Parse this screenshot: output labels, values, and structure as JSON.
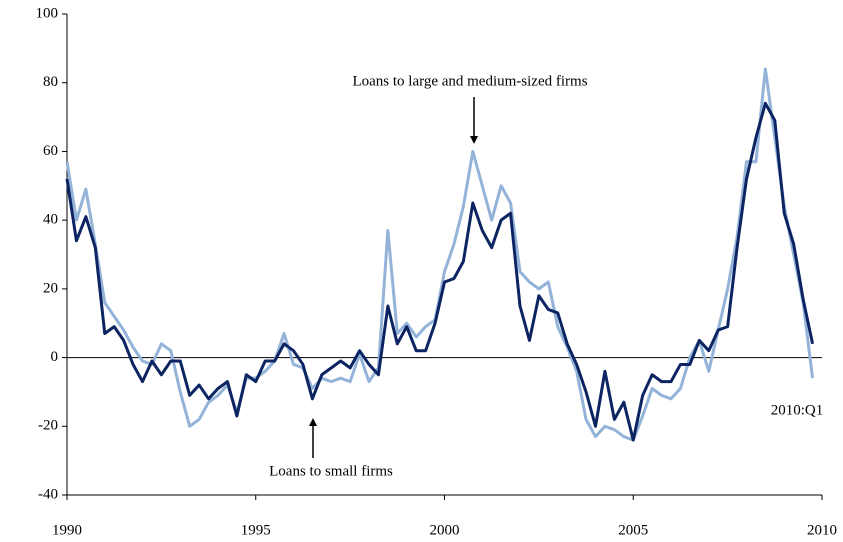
{
  "chart_data": {
    "type": "line",
    "x": [
      1990,
      1990.25,
      1990.5,
      1990.75,
      1991,
      1991.25,
      1991.5,
      1991.75,
      1992,
      1992.25,
      1992.5,
      1992.75,
      1993,
      1993.25,
      1993.5,
      1993.75,
      1994,
      1994.25,
      1994.5,
      1994.75,
      1995,
      1995.25,
      1995.5,
      1995.75,
      1996,
      1996.25,
      1996.5,
      1996.75,
      1997,
      1997.25,
      1997.5,
      1997.75,
      1998,
      1998.25,
      1998.5,
      1998.75,
      1999,
      1999.25,
      1999.5,
      1999.75,
      2000,
      2000.25,
      2000.5,
      2000.75,
      2001,
      2001.25,
      2001.5,
      2001.75,
      2002,
      2002.25,
      2002.5,
      2002.75,
      2003,
      2003.25,
      2003.5,
      2003.75,
      2004,
      2004.25,
      2004.5,
      2004.75,
      2005,
      2005.25,
      2005.5,
      2005.75,
      2006,
      2006.25,
      2006.5,
      2006.75,
      2007,
      2007.25,
      2007.5,
      2007.75,
      2008,
      2008.25,
      2008.5,
      2008.75,
      2009,
      2009.25,
      2009.5,
      2009.75
    ],
    "series": [
      {
        "name": "Loans to small firms",
        "color": "#0c2462",
        "values": [
          52,
          34,
          41,
          32,
          7,
          9,
          5,
          -2,
          -7,
          -1,
          -5,
          -1,
          -1,
          -11,
          -8,
          -12,
          -9,
          -7,
          -17,
          -5,
          -7,
          -1,
          -1,
          4,
          2,
          -2,
          -12,
          -5,
          -3,
          -1,
          -3,
          2,
          -2,
          -5,
          15,
          4,
          9,
          2,
          2,
          10,
          22,
          23,
          28,
          45,
          37,
          32,
          40,
          42,
          15,
          5,
          18,
          14,
          13,
          4,
          -2,
          -10,
          -20,
          -4,
          -18,
          -13,
          -24,
          -11,
          -5,
          -7,
          -7,
          -2,
          -2,
          5,
          2,
          8,
          9,
          32,
          52,
          64,
          74,
          69,
          42,
          33,
          17,
          4
        ]
      },
      {
        "name": "Loans to large and medium-sized firms",
        "color": "#94b3d9",
        "values": [
          57,
          40,
          49,
          33,
          16,
          12,
          8,
          3,
          -1,
          -2,
          4,
          2,
          -10,
          -20,
          -18,
          -13,
          -11,
          -8,
          -16,
          -6,
          -6,
          -4,
          -1,
          7,
          -2,
          -3,
          -9,
          -6,
          -7,
          -6,
          -7,
          1,
          -7,
          -3,
          37,
          7,
          10,
          6,
          9,
          11,
          25,
          33,
          44,
          60,
          50,
          40,
          50,
          45,
          25,
          22,
          20,
          22,
          9,
          3,
          -4,
          -18,
          -23,
          -20,
          -21,
          -23,
          -24,
          -17,
          -9,
          -11,
          -12,
          -9,
          0,
          5,
          -4,
          8,
          20,
          35,
          57,
          57,
          84,
          64,
          44,
          30,
          16,
          -6
        ]
      }
    ],
    "xlim": [
      1990,
      2010
    ],
    "xticks": [
      1990,
      1995,
      2000,
      2005,
      2010
    ],
    "ylim": [
      -40,
      100
    ],
    "yticks": [
      -40,
      -20,
      0,
      20,
      40,
      60,
      80,
      100
    ],
    "annotations": [
      "2010:Q1"
    ]
  }
}
